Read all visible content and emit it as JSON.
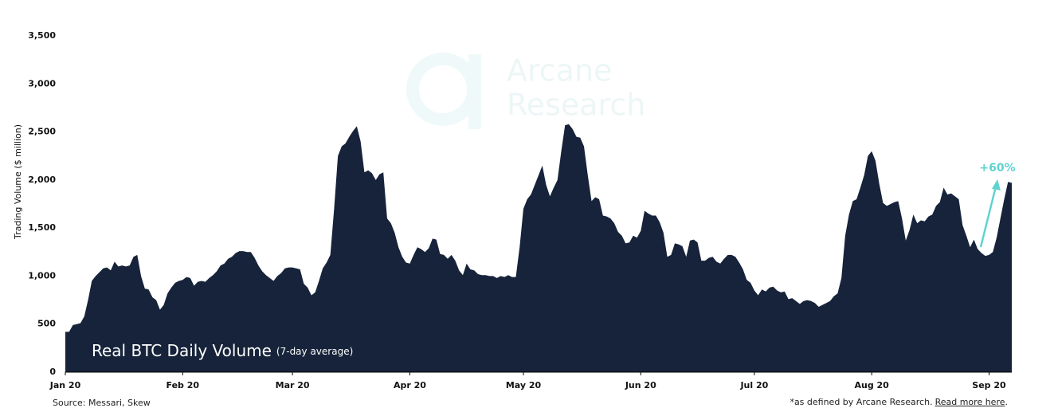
{
  "chart_data": {
    "type": "area",
    "title": "Real BTC Daily Volume",
    "subtitle": "(7-day average)",
    "y_label": "Trading Volume ($ million)",
    "watermark": [
      "Arcane",
      "Research"
    ],
    "annotation": "+60%",
    "annotation_color": "#5fd3d0",
    "source": "Source: Messari, Skew",
    "footnote": "*as defined by Arcane Research.",
    "footnote_link": "Read more here",
    "footnote_end": ".",
    "color": "#16233a",
    "ylim": [
      0,
      3500
    ],
    "yticks": [
      0,
      500,
      {
        "value": 1000,
        "label": "1,000"
      },
      {
        "value": 1500,
        "label": "1,500"
      },
      {
        "value": 2000,
        "label": "2,000"
      },
      {
        "value": 2500,
        "label": "2,500"
      },
      {
        "value": 3000,
        "label": "3,000"
      },
      {
        "value": 3500,
        "label": "3,500"
      }
    ],
    "categories": [
      "Jan 20",
      null,
      null,
      null,
      null,
      null,
      null,
      null,
      null,
      null,
      null,
      null,
      null,
      null,
      null,
      null,
      null,
      null,
      null,
      null,
      null,
      null,
      null,
      null,
      null,
      null,
      null,
      null,
      null,
      null,
      null,
      "Feb 20",
      null,
      null,
      null,
      null,
      null,
      null,
      null,
      null,
      null,
      null,
      null,
      null,
      null,
      null,
      null,
      null,
      null,
      null,
      null,
      null,
      null,
      null,
      null,
      null,
      null,
      null,
      null,
      null,
      "Mar 20",
      null,
      null,
      null,
      null,
      null,
      null,
      null,
      null,
      null,
      null,
      null,
      null,
      null,
      null,
      null,
      null,
      null,
      null,
      null,
      null,
      null,
      null,
      null,
      null,
      null,
      null,
      null,
      null,
      null,
      null,
      "Apr 20",
      null,
      null,
      null,
      null,
      null,
      null,
      null,
      null,
      null,
      null,
      null,
      null,
      null,
      null,
      null,
      null,
      null,
      null,
      null,
      null,
      null,
      null,
      null,
      null,
      null,
      null,
      null,
      null,
      null,
      "May 20",
      null,
      null,
      null,
      null,
      null,
      null,
      null,
      null,
      null,
      null,
      null,
      null,
      null,
      null,
      null,
      null,
      null,
      null,
      null,
      null,
      null,
      null,
      null,
      null,
      null,
      null,
      null,
      null,
      null,
      null,
      "Jun 20",
      null,
      null,
      null,
      null,
      null,
      null,
      null,
      null,
      null,
      null,
      null,
      null,
      null,
      null,
      null,
      null,
      null,
      null,
      null,
      null,
      null,
      null,
      null,
      null,
      null,
      null,
      null,
      null,
      null,
      "Jul 20",
      null,
      null,
      null,
      null,
      null,
      null,
      null,
      null,
      null,
      null,
      null,
      null,
      null,
      null,
      null,
      null,
      null,
      null,
      null,
      null,
      null,
      null,
      null,
      null,
      null,
      null,
      null,
      null,
      null,
      null,
      "Aug 20",
      null,
      null,
      null,
      null,
      null,
      null,
      null,
      null,
      null,
      null,
      null,
      null,
      null,
      null,
      null,
      null,
      null,
      null,
      null,
      null,
      null,
      null,
      null,
      null,
      null,
      null,
      null,
      null,
      null,
      null,
      "Sep 20",
      null,
      null,
      null,
      null,
      null,
      null
    ],
    "values": [
      420,
      420,
      490,
      500,
      510,
      580,
      750,
      950,
      1000,
      1040,
      1080,
      1090,
      1060,
      1150,
      1100,
      1110,
      1100,
      1110,
      1200,
      1220,
      1000,
      870,
      860,
      780,
      750,
      650,
      700,
      820,
      880,
      930,
      950,
      960,
      990,
      980,
      900,
      940,
      950,
      940,
      980,
      1010,
      1050,
      1110,
      1130,
      1180,
      1200,
      1240,
      1260,
      1260,
      1250,
      1250,
      1190,
      1110,
      1050,
      1010,
      980,
      950,
      1000,
      1030,
      1080,
      1090,
      1090,
      1080,
      1070,
      920,
      880,
      800,
      830,
      950,
      1080,
      1140,
      1220,
      1700,
      2250,
      2350,
      2380,
      2450,
      2510,
      2560,
      2400,
      2080,
      2100,
      2070,
      2000,
      2060,
      2080,
      1600,
      1550,
      1450,
      1300,
      1200,
      1140,
      1130,
      1220,
      1300,
      1280,
      1250,
      1290,
      1390,
      1380,
      1230,
      1220,
      1180,
      1220,
      1160,
      1060,
      1010,
      1130,
      1070,
      1060,
      1020,
      1010,
      1010,
      1000,
      1000,
      980,
      1000,
      990,
      1010,
      990,
      990,
      1300,
      1700,
      1800,
      1850,
      1950,
      2050,
      2150,
      1950,
      1830,
      1920,
      2000,
      2300,
      2570,
      2580,
      2530,
      2450,
      2440,
      2350,
      2050,
      1780,
      1820,
      1800,
      1630,
      1620,
      1600,
      1550,
      1460,
      1420,
      1340,
      1350,
      1420,
      1400,
      1470,
      1680,
      1650,
      1630,
      1630,
      1560,
      1450,
      1200,
      1220,
      1340,
      1330,
      1310,
      1200,
      1370,
      1380,
      1350,
      1160,
      1160,
      1190,
      1200,
      1150,
      1130,
      1180,
      1220,
      1220,
      1200,
      1140,
      1070,
      960,
      930,
      850,
      800,
      860,
      840,
      880,
      890,
      850,
      830,
      840,
      760,
      770,
      740,
      710,
      740,
      750,
      740,
      720,
      680,
      700,
      720,
      740,
      790,
      820,
      980,
      1420,
      1640,
      1780,
      1800,
      1920,
      2050,
      2250,
      2300,
      2200,
      1960,
      1760,
      1730,
      1750,
      1770,
      1780,
      1600,
      1370,
      1480,
      1640,
      1550,
      1580,
      1570,
      1620,
      1640,
      1730,
      1770,
      1920,
      1850,
      1860,
      1830,
      1800,
      1530,
      1420,
      1300,
      1380,
      1280,
      1240,
      1210,
      1220,
      1250,
      1400,
      1600,
      1800,
      1980,
      1970
    ]
  }
}
